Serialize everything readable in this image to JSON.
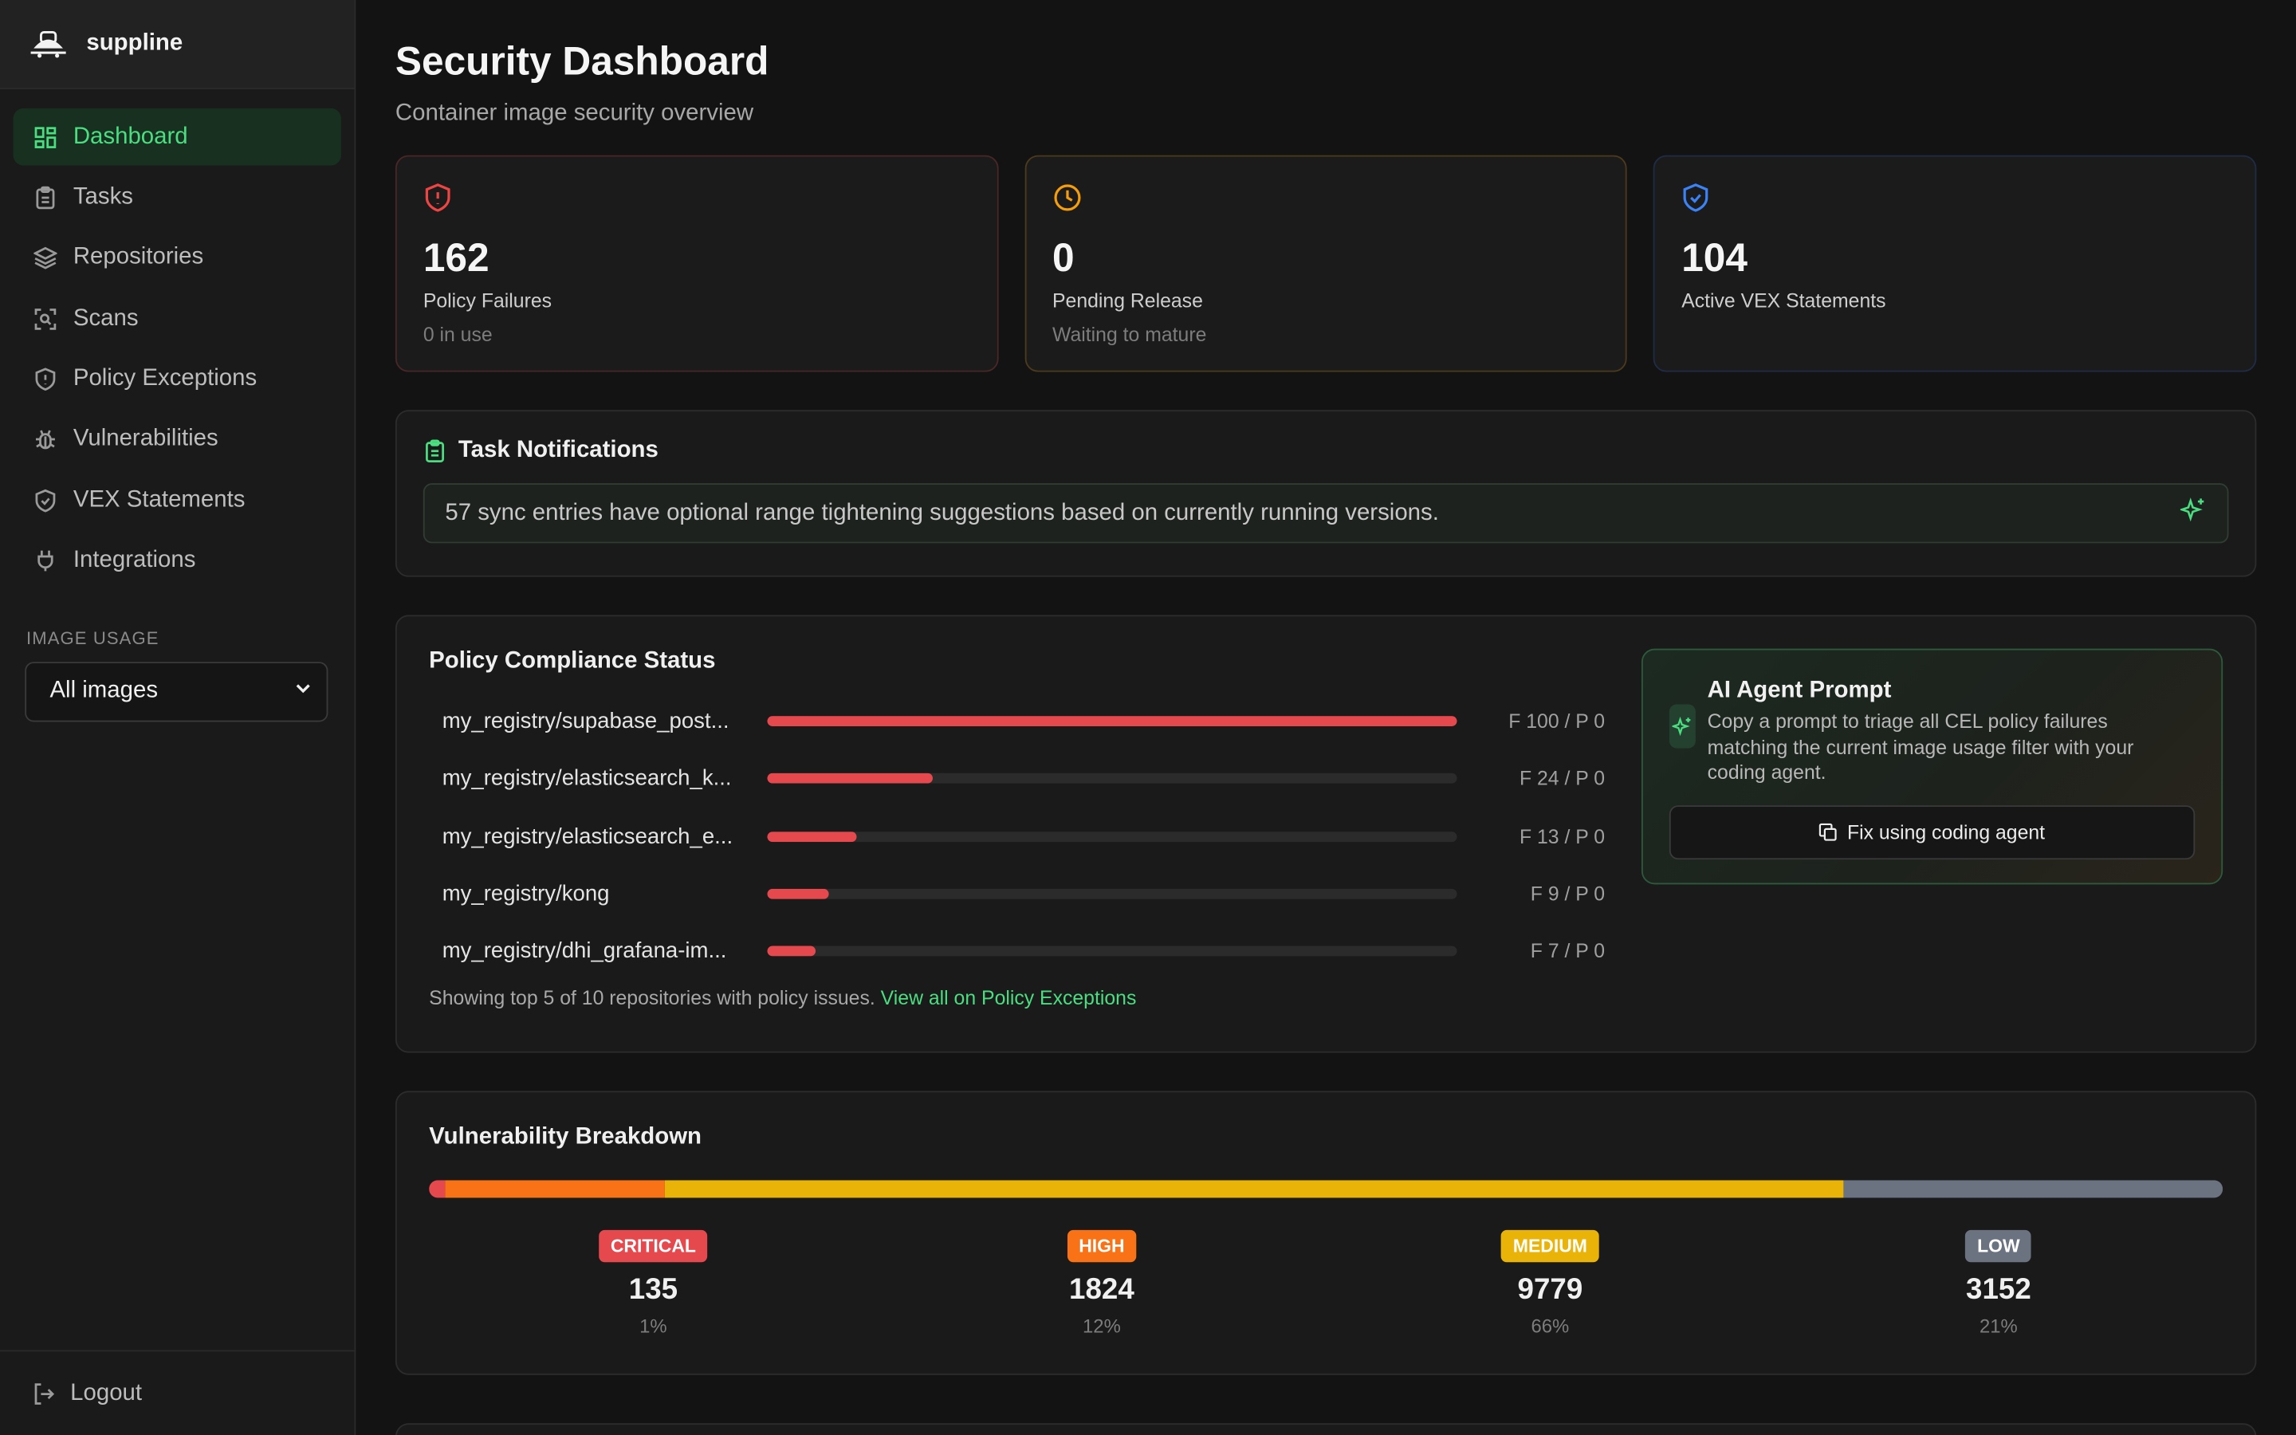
{
  "app": {
    "name": "suppline"
  },
  "sidebar": {
    "items": [
      {
        "label": "Dashboard",
        "icon": "dashboard-icon"
      },
      {
        "label": "Tasks",
        "icon": "clipboard-icon"
      },
      {
        "label": "Repositories",
        "icon": "layers-icon"
      },
      {
        "label": "Scans",
        "icon": "scan-icon"
      },
      {
        "label": "Policy Exceptions",
        "icon": "shield-exclamation-icon"
      },
      {
        "label": "Vulnerabilities",
        "icon": "bug-icon"
      },
      {
        "label": "VEX Statements",
        "icon": "shield-check-icon"
      },
      {
        "label": "Integrations",
        "icon": "plug-icon"
      }
    ],
    "image_usage_label": "IMAGE USAGE",
    "image_usage_value": "All images",
    "logout_label": "Logout"
  },
  "header": {
    "title": "Security Dashboard",
    "subtitle": "Container image security overview"
  },
  "stats": [
    {
      "value": "162",
      "label": "Policy Failures",
      "sub": "0 in use",
      "color": "#ef4444"
    },
    {
      "value": "0",
      "label": "Pending Release",
      "sub": "Waiting to mature",
      "color": "#f59e0b"
    },
    {
      "value": "104",
      "label": "Active VEX Statements",
      "sub": "",
      "color": "#3b82f6"
    }
  ],
  "notifications": {
    "title": "Task Notifications",
    "message": "57 sync entries have optional range tightening suggestions based on currently running versions."
  },
  "compliance": {
    "title": "Policy Compliance Status",
    "rows": [
      {
        "name": "my_registry/supabase_post...",
        "count": "F 100 / P 0",
        "fraction": 1.0
      },
      {
        "name": "my_registry/elasticsearch_k...",
        "count": "F 24 / P 0",
        "fraction": 0.24
      },
      {
        "name": "my_registry/elasticsearch_e...",
        "count": "F 13 / P 0",
        "fraction": 0.13
      },
      {
        "name": "my_registry/kong",
        "count": "F 9 / P 0",
        "fraction": 0.09
      },
      {
        "name": "my_registry/dhi_grafana-im...",
        "count": "F 7 / P 0",
        "fraction": 0.07
      }
    ],
    "footer_text": "Showing top 5 of 10 repositories with policy issues.",
    "footer_link": "View all on Policy Exceptions"
  },
  "ai_agent": {
    "title": "AI Agent Prompt",
    "description": "Copy a prompt to triage all CEL policy failures matching the current image usage filter with your coding agent.",
    "button_label": "Fix using coding agent"
  },
  "vulnerabilities": {
    "title": "Vulnerability Breakdown",
    "levels": [
      {
        "label": "CRITICAL",
        "count": "135",
        "pct": "1%",
        "color": "#e5484d",
        "value": 135
      },
      {
        "label": "HIGH",
        "count": "1824",
        "pct": "12%",
        "color": "#f97316",
        "value": 1824
      },
      {
        "label": "MEDIUM",
        "count": "9779",
        "pct": "66%",
        "color": "#eab308",
        "value": 9779
      },
      {
        "label": "LOW",
        "count": "3152",
        "pct": "21%",
        "color": "#6b7280",
        "value": 3152
      }
    ]
  }
}
